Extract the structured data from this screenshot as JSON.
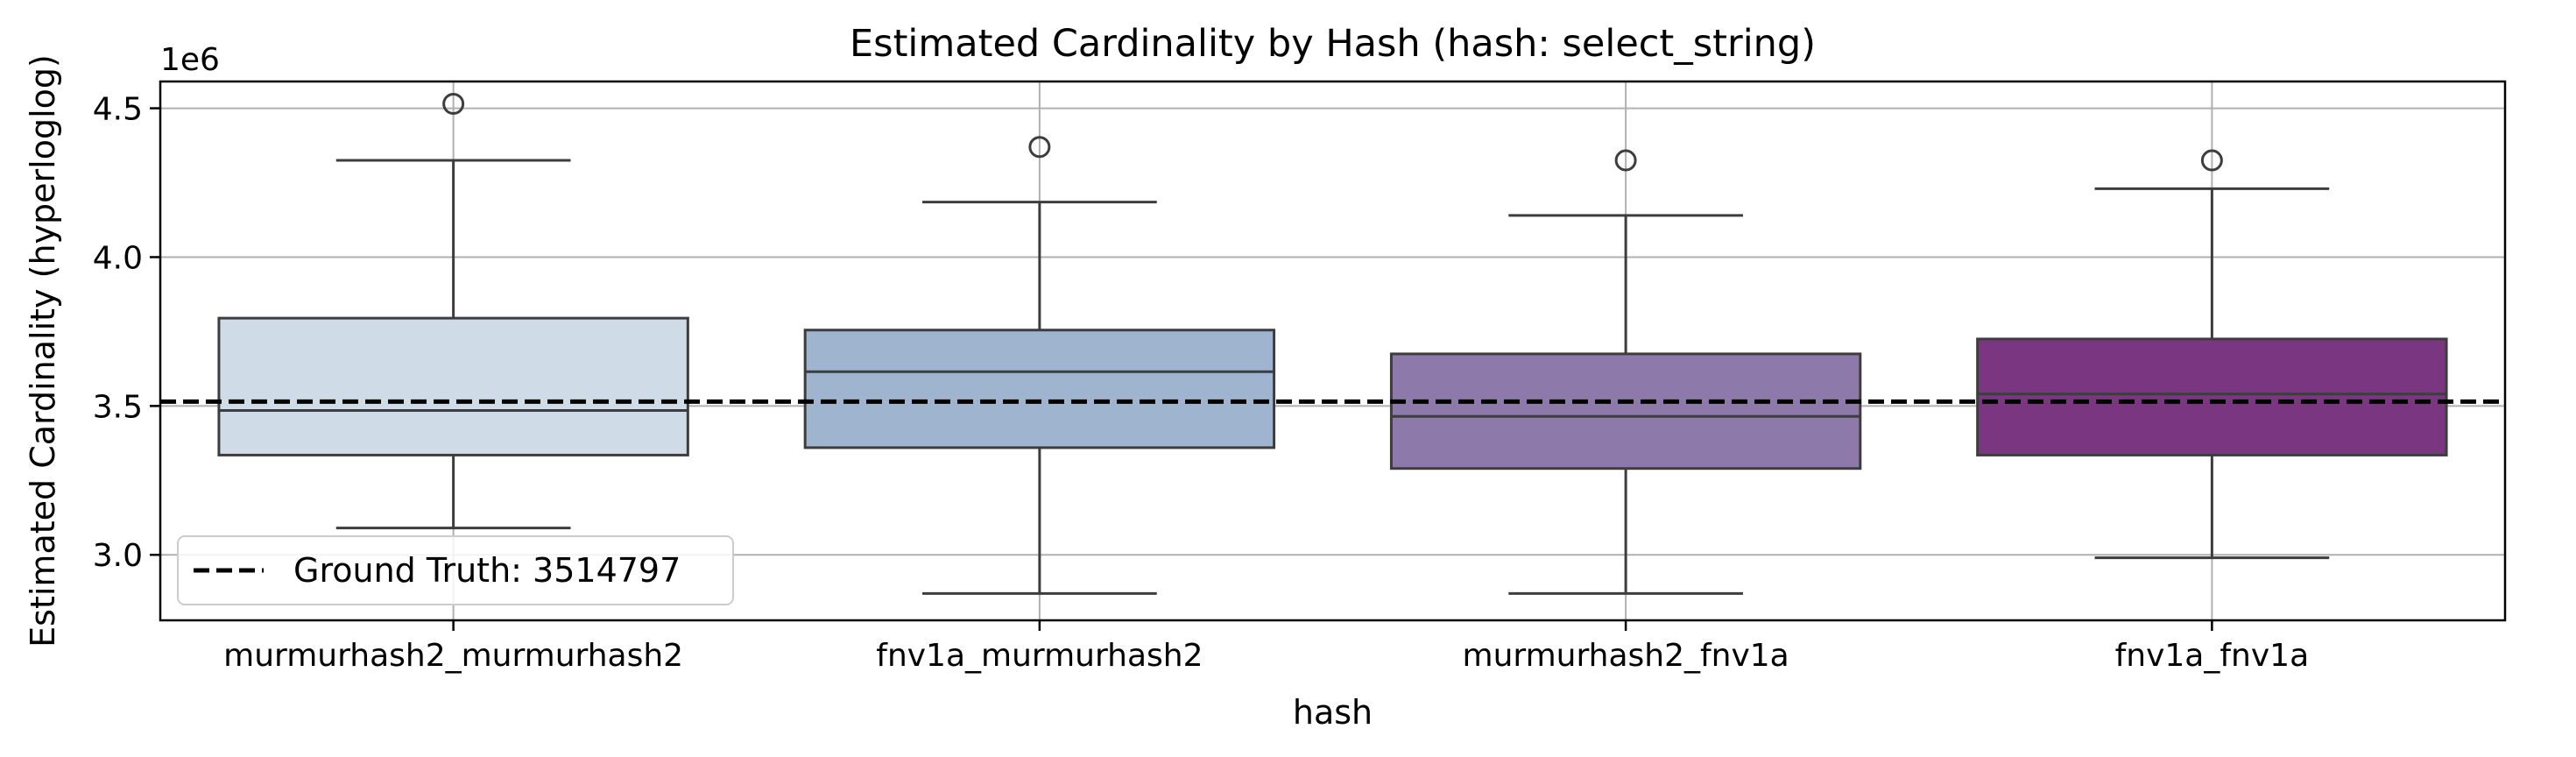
{
  "chart_data": {
    "type": "box",
    "title": "Estimated Cardinality by Hash (hash: select_string)",
    "xlabel": "hash",
    "ylabel": "Estimated Cardinality (hyperloglog)",
    "y_offset_label": "1e6",
    "ylim": [
      2780000,
      4590000
    ],
    "y_ticks": [
      3000000,
      3500000,
      4000000,
      4500000
    ],
    "y_tick_labels": [
      "3.0",
      "3.5",
      "4.0",
      "4.5"
    ],
    "grid": true,
    "categories": [
      "murmurhash2_murmurhash2",
      "fnv1a_murmurhash2",
      "murmurhash2_fnv1a",
      "fnv1a_fnv1a"
    ],
    "boxes": [
      {
        "category": "murmurhash2_murmurhash2",
        "whisker_low": 3090000,
        "q1": 3335000,
        "median": 3485000,
        "q3": 3795000,
        "whisker_high": 4325000,
        "outliers": [
          4515000
        ],
        "color": "#cfdce8"
      },
      {
        "category": "fnv1a_murmurhash2",
        "whisker_low": 2870000,
        "q1": 3360000,
        "median": 3615000,
        "q3": 3755000,
        "whisker_high": 4185000,
        "outliers": [
          4370000
        ],
        "color": "#9fb4cf"
      },
      {
        "category": "murmurhash2_fnv1a",
        "whisker_low": 2870000,
        "q1": 3290000,
        "median": 3465000,
        "q3": 3675000,
        "whisker_high": 4140000,
        "outliers": [
          4325000
        ],
        "color": "#8d79aa"
      },
      {
        "category": "fnv1a_fnv1a",
        "whisker_low": 2990000,
        "q1": 3335000,
        "median": 3540000,
        "q3": 3725000,
        "whisker_high": 4230000,
        "outliers": [
          4325000
        ],
        "color": "#7b3681"
      }
    ],
    "reference_line": {
      "value": 3514797,
      "label": "Ground Truth: 3514797",
      "style": "dashed",
      "color": "#000000"
    },
    "legend": {
      "position": "lower-left",
      "entries": [
        "Ground Truth: 3514797"
      ]
    }
  }
}
